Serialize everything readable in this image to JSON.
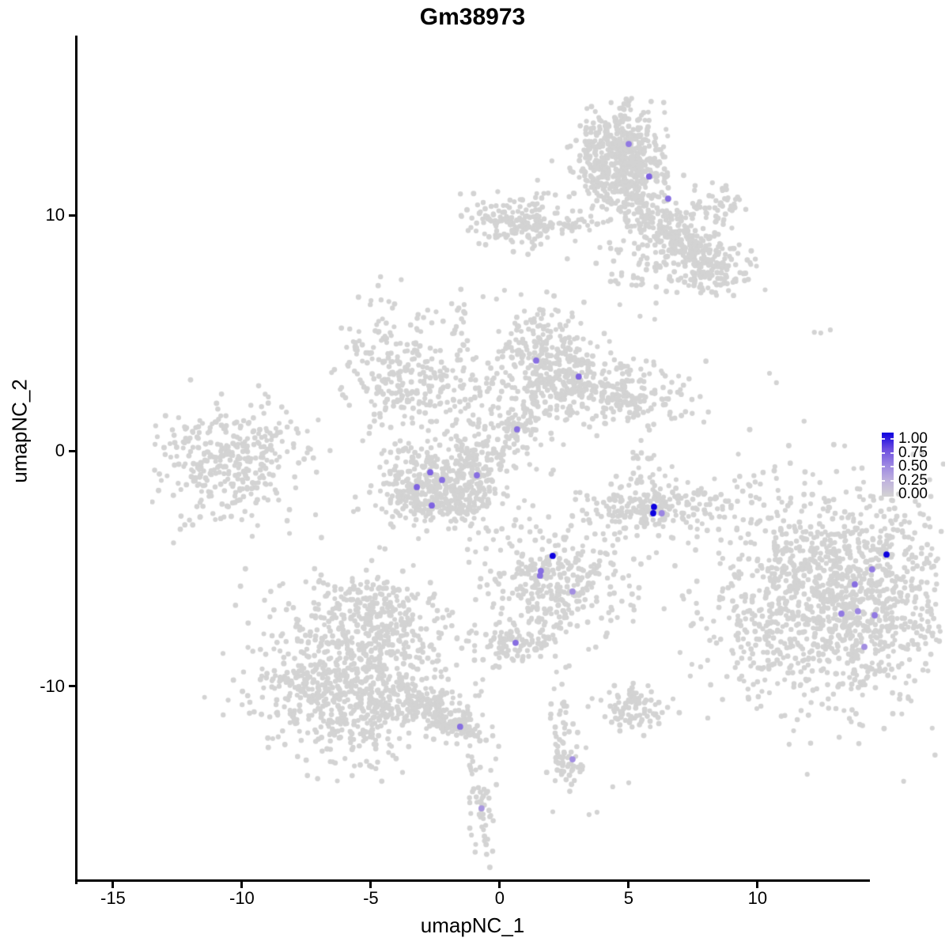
{
  "chart_data": {
    "type": "scatter",
    "title": "Gm38973",
    "xlabel": "umapNC_1",
    "ylabel": "umapNC_2",
    "x_range": [
      -16.47,
      14.36
    ],
    "y_range": [
      -18.29,
      17.62
    ],
    "x_ticks": [
      -15,
      -10,
      -5,
      0,
      5,
      10
    ],
    "y_ticks": [
      -10,
      0,
      10
    ],
    "grid": false,
    "background_point_color": "#D3D3D3",
    "gradient_stops": [
      [
        0,
        "#D3D3D3"
      ],
      [
        0.25,
        "#BFB2DE"
      ],
      [
        0.5,
        "#9B85E2"
      ],
      [
        0.75,
        "#6A4BE0"
      ],
      [
        1,
        "#0D00DF"
      ]
    ],
    "background_clusters": [
      [
        1.78,
        13.76,
        0.85,
        1.15,
        600,
        0
      ],
      [
        4.08,
        10.57,
        1.35,
        0.45,
        280,
        -35
      ],
      [
        5.15,
        8.89,
        0.9,
        0.55,
        90,
        0
      ],
      [
        5.61,
        11.91,
        0.55,
        0.45,
        50,
        0
      ],
      [
        3.0,
        9.7,
        1.3,
        1.0,
        70,
        0
      ],
      [
        -2.33,
        11.34,
        0.95,
        0.6,
        160,
        0
      ],
      [
        -0.7,
        11.05,
        1.0,
        0.18,
        35,
        0
      ],
      [
        -6.96,
        4.97,
        1.05,
        1.35,
        230,
        20
      ],
      [
        -4.72,
        3.86,
        1.2,
        0.85,
        90,
        -30
      ],
      [
        -4.39,
        6.31,
        0.18,
        0.85,
        22,
        0
      ],
      [
        -1.1,
        5.03,
        0.9,
        1.25,
        280,
        0
      ],
      [
        1.23,
        4.06,
        1.5,
        0.8,
        300,
        -10
      ],
      [
        -2.24,
        2.45,
        0.45,
        0.45,
        55,
        0
      ],
      [
        -3.13,
        1.68,
        1.0,
        0.65,
        45,
        -20
      ],
      [
        -1.75,
        7.05,
        0.5,
        0.5,
        10,
        0
      ],
      [
        -13.56,
        1.04,
        1.4,
        1.25,
        330,
        0
      ],
      [
        -11.32,
        1.78,
        1.0,
        0.8,
        25,
        0
      ],
      [
        -6.1,
        0.2,
        0.75,
        0.85,
        170,
        0
      ],
      [
        -4.15,
        0.2,
        0.75,
        0.85,
        170,
        0
      ],
      [
        -5.15,
        -0.7,
        1.1,
        0.5,
        150,
        0
      ],
      [
        -5.1,
        1.3,
        1.3,
        0.4,
        30,
        0
      ],
      [
        3.25,
        -0.81,
        1.45,
        0.55,
        230,
        0
      ],
      [
        2.61,
        0.84,
        0.35,
        0.8,
        25,
        0
      ],
      [
        -0.61,
        -3.86,
        1.4,
        1.3,
        340,
        0
      ],
      [
        -0.98,
        -5.87,
        0.3,
        0.7,
        18,
        0
      ],
      [
        -2.42,
        -6.78,
        0.7,
        0.42,
        80,
        0
      ],
      [
        10.21,
        -4.7,
        2.3,
        2.2,
        1250,
        0
      ],
      [
        10.21,
        -4.7,
        2.9,
        2.7,
        130,
        0
      ],
      [
        -8.5,
        -7.72,
        1.9,
        1.9,
        700,
        0
      ],
      [
        -8.04,
        -5.37,
        1.1,
        0.8,
        160,
        0
      ],
      [
        -8.65,
        -9.4,
        2.2,
        0.8,
        220,
        0
      ],
      [
        -5.28,
        -9.6,
        0.95,
        0.3,
        160,
        -35
      ],
      [
        -4.45,
        -10.25,
        0.35,
        0.35,
        40,
        0
      ],
      [
        -3.9,
        -11.91,
        0.15,
        1.3,
        20,
        0
      ],
      [
        -3.56,
        -13.59,
        0.25,
        0.75,
        30,
        0
      ],
      [
        -3.44,
        -14.83,
        0.2,
        0.55,
        10,
        0
      ],
      [
        -0.46,
        -10.23,
        0.25,
        1.3,
        45,
        0
      ],
      [
        -0.25,
        -11.55,
        0.35,
        0.4,
        30,
        0
      ],
      [
        2.24,
        -9.4,
        0.75,
        0.5,
        90,
        0
      ]
    ],
    "extra_background_points": [
      [
        9.29,
        6.54
      ],
      [
        9.54,
        6.51
      ],
      [
        9.91,
        6.64
      ],
      [
        7.55,
        4.8
      ],
      [
        7.82,
        4.4
      ],
      [
        7.76,
        0.84
      ],
      [
        7.82,
        0.34
      ],
      [
        7.88,
        -0.17
      ],
      [
        7.91,
        -0.5
      ],
      [
        8.03,
        -0.67
      ],
      [
        7.98,
        -1.78
      ],
      [
        4.08,
        -7.05
      ],
      [
        4.54,
        -7.55
      ],
      [
        5.15,
        -7.38
      ],
      [
        0.86,
        -13.83
      ],
      [
        0.55,
        -13.93
      ],
      [
        2.09,
        -12.58
      ],
      [
        1.47,
        -12.75
      ],
      [
        -2.73,
        8.32
      ],
      [
        -3.04,
        7.95
      ],
      [
        -1.23,
        7.32
      ],
      [
        -3.56,
        8.05
      ],
      [
        -2.67,
        4.26
      ],
      [
        -2.33,
        4.19
      ],
      [
        1.1,
        -2.01
      ],
      [
        1.47,
        -2.51
      ],
      [
        3.77,
        0.84
      ],
      [
        -6.5,
        -4.36
      ],
      [
        -6.26,
        -4.7
      ],
      [
        -3.83,
        10.84
      ]
    ],
    "expressing_cells": [
      [
        2.09,
        14.53,
        0.55
      ],
      [
        2.88,
        13.15,
        0.65
      ],
      [
        3.62,
        12.21,
        0.6
      ],
      [
        -1.5,
        5.34,
        0.6
      ],
      [
        0.15,
        4.66,
        0.65
      ],
      [
        -2.24,
        2.42,
        0.6
      ],
      [
        -5.61,
        0.6,
        0.65
      ],
      [
        -5.15,
        0.27,
        0.6
      ],
      [
        -6.13,
        -0.03,
        0.65
      ],
      [
        -3.8,
        0.47,
        0.6
      ],
      [
        -5.55,
        -0.81,
        0.65
      ],
      [
        3.07,
        -0.87,
        1.0
      ],
      [
        3.04,
        -1.14,
        1.0
      ],
      [
        3.37,
        -1.14,
        0.5
      ],
      [
        -0.86,
        -2.95,
        1.0
      ],
      [
        -1.32,
        -3.59,
        0.6
      ],
      [
        -1.35,
        -3.79,
        0.6
      ],
      [
        -0.09,
        -4.46,
        0.45
      ],
      [
        -2.3,
        -6.64,
        0.6
      ],
      [
        12.09,
        -2.89,
        1.0
      ],
      [
        11.53,
        -3.52,
        0.55
      ],
      [
        10.86,
        -4.16,
        0.6
      ],
      [
        10.34,
        -5.4,
        0.55
      ],
      [
        10.98,
        -5.3,
        0.5
      ],
      [
        11.63,
        -5.47,
        0.55
      ],
      [
        11.23,
        -6.81,
        0.45
      ],
      [
        -4.45,
        -10.2,
        0.6
      ],
      [
        -0.09,
        -11.58,
        0.45
      ],
      [
        -3.62,
        -13.66,
        0.4
      ]
    ]
  },
  "legend": {
    "labels": [
      "1.00",
      "0.75",
      "0.50",
      "0.25",
      "0.00"
    ],
    "values": [
      1,
      0.75,
      0.5,
      0.25,
      0
    ],
    "tick_values": [
      1,
      0.75,
      0.5,
      0.25
    ]
  }
}
